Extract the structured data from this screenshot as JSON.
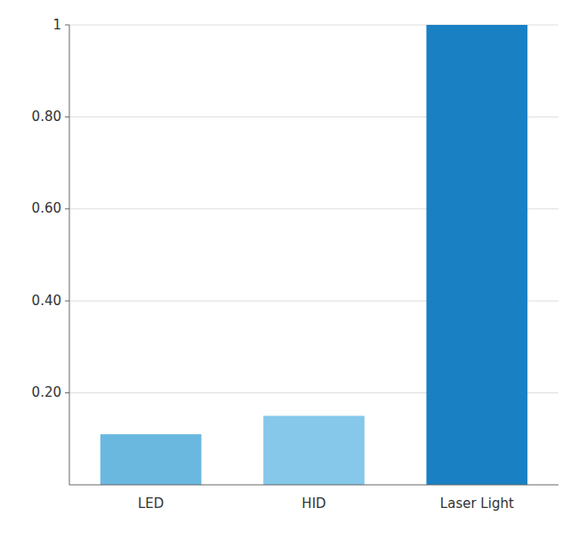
{
  "chart_data": {
    "type": "bar",
    "categories": [
      "LED",
      "HID",
      "Laser Light"
    ],
    "values": [
      0.11,
      0.15,
      1.0
    ],
    "colors": [
      "#6ab8e0",
      "#85c8ea",
      "#1a80c4"
    ],
    "ylim": [
      0,
      1.0
    ],
    "yticks": [
      {
        "value": 0.2,
        "label": "0.20"
      },
      {
        "value": 0.4,
        "label": "0.40"
      },
      {
        "value": 0.6,
        "label": "0.60"
      },
      {
        "value": 0.8,
        "label": "0.80"
      },
      1
    ],
    "grid": true
  }
}
